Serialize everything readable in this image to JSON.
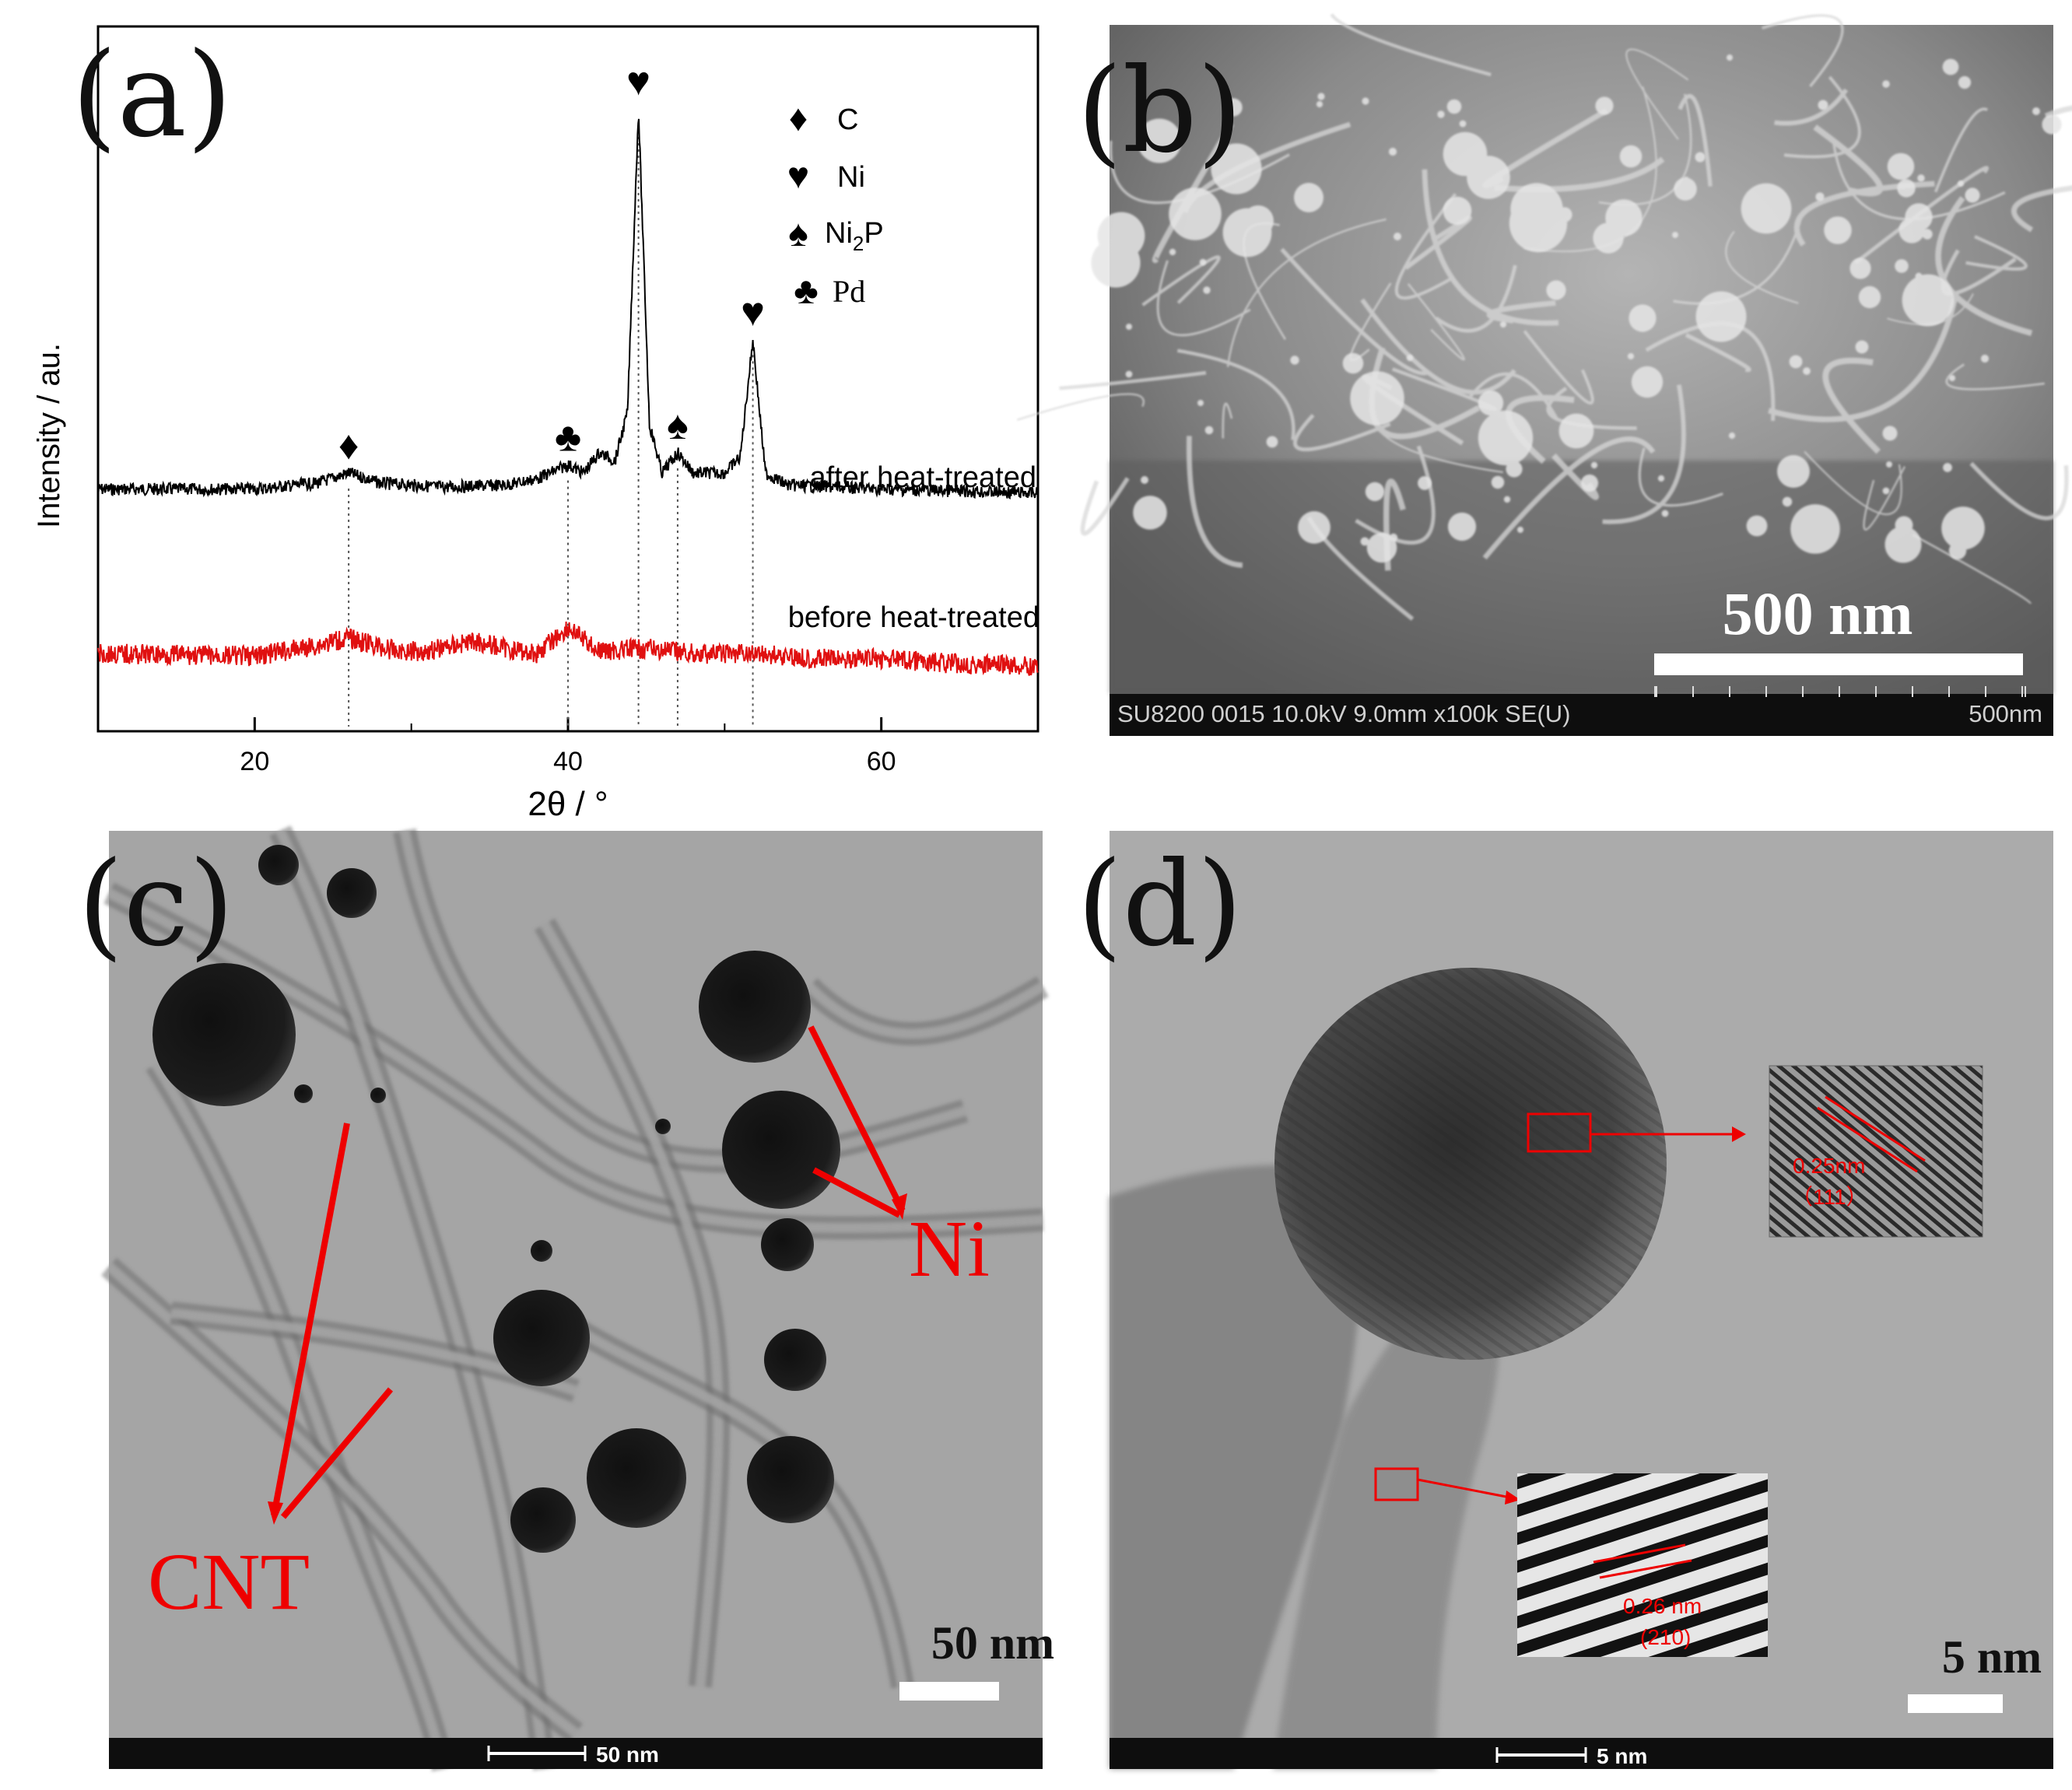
{
  "panel_labels": {
    "a": "(a)",
    "b": "(b)",
    "c": "(c)",
    "d": "(d)"
  },
  "chart_data": {
    "type": "line",
    "xlabel": "2θ / °",
    "ylabel": "Intensity / au.",
    "xlim": [
      10,
      70
    ],
    "x_ticks": [
      20,
      40,
      60
    ],
    "x_tick_labels": [
      "20",
      "40",
      "60"
    ],
    "grid": false,
    "series": [
      {
        "name": "after heat-treated",
        "color": "#000000",
        "x": [
          10,
          20,
          24,
          26,
          28,
          32,
          36,
          38,
          40,
          41,
          42,
          43,
          43.8,
          44.5,
          45.2,
          46,
          47,
          48,
          50,
          51,
          51.8,
          52.6,
          54,
          60,
          70
        ],
        "y": [
          0.06,
          0.06,
          0.075,
          0.1,
          0.075,
          0.065,
          0.07,
          0.085,
          0.12,
          0.1,
          0.15,
          0.13,
          0.25,
          1.0,
          0.22,
          0.1,
          0.15,
          0.1,
          0.1,
          0.14,
          0.43,
          0.1,
          0.07,
          0.06,
          0.05
        ]
      },
      {
        "name": "before heat-treated",
        "color": "#e01010",
        "x": [
          10,
          20,
          23,
          26,
          29,
          31,
          34,
          36,
          38,
          40,
          42,
          45,
          48,
          52,
          56,
          60,
          65,
          70
        ],
        "y": [
          0.06,
          0.05,
          0.08,
          0.12,
          0.07,
          0.07,
          0.11,
          0.08,
          0.06,
          0.16,
          0.07,
          0.08,
          0.06,
          0.06,
          0.04,
          0.04,
          0.02,
          0.01
        ]
      }
    ],
    "annotations": [
      {
        "symbol": "♦",
        "phase": "C",
        "x": 26
      },
      {
        "symbol": "♣",
        "phase": "Pd",
        "x": 40
      },
      {
        "symbol": "♥",
        "phase": "Ni",
        "x": 44.5
      },
      {
        "symbol": "♠",
        "phase": "Ni2P",
        "x": 47
      },
      {
        "symbol": "♥",
        "phase": "Ni",
        "x": 51.8
      }
    ],
    "legend": {
      "placement": "top-right",
      "items": [
        {
          "symbol": "♦",
          "label": "C"
        },
        {
          "symbol": "♥",
          "label": "Ni"
        },
        {
          "symbol": "♠",
          "label_main": "Ni",
          "label_sub": "2",
          "label_tail": "P"
        },
        {
          "symbol": "♣",
          "label": "Pd"
        }
      ]
    }
  },
  "panel_b": {
    "scale_text": "500 nm",
    "info_bar": "SU8200 0015 10.0kV 9.0mm x100k SE(U)",
    "info_scale": "500nm"
  },
  "panel_c": {
    "ni_label": "Ni",
    "cnt_label": "CNT",
    "scale_text": "50 nm",
    "bar_scale": "50 nm",
    "annotation_color": "#ee0000"
  },
  "panel_d": {
    "scale_text": "5 nm",
    "bar_scale": "5 nm",
    "inset1_spacing": "0.25nm",
    "inset1_plane": "（111）",
    "inset2_spacing": "0.26 nm",
    "inset2_plane": "(210)",
    "annotation_color": "#ee0000"
  }
}
